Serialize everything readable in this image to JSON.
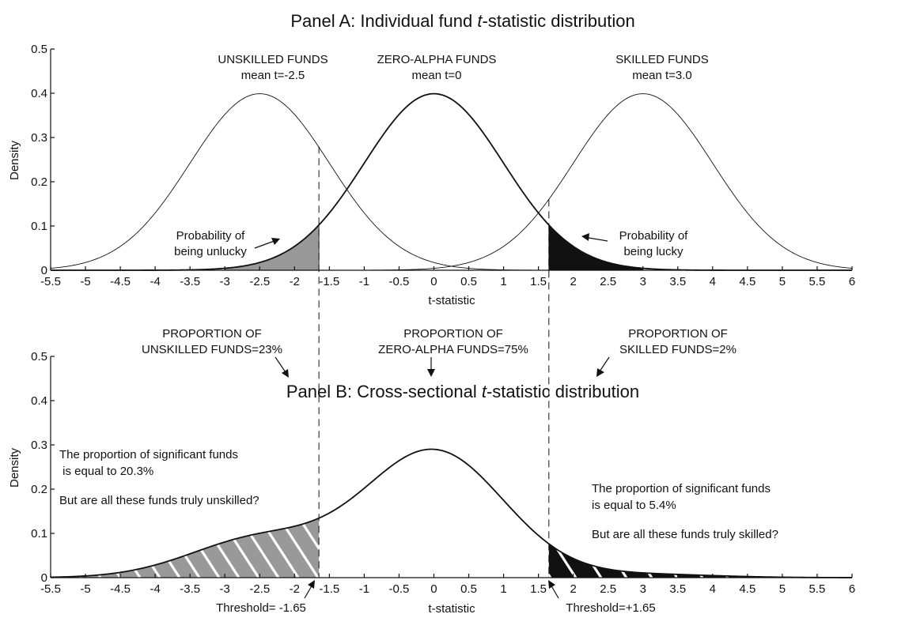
{
  "chart_data": [
    {
      "type": "line",
      "title_prefix": "Panel A: Individual fund ",
      "title_italic": "t",
      "title_suffix": "-statistic distribution",
      "xlabel": "t-statistic",
      "ylabel": "Density",
      "xlim": [
        -5.5,
        6
      ],
      "ylim": [
        0,
        0.5
      ],
      "xticks": [
        -5.5,
        -5,
        -4.5,
        -4,
        -3.5,
        -3,
        -2.5,
        -2,
        -1.5,
        -1,
        -0.5,
        0,
        0.5,
        1,
        1.5,
        2,
        2.5,
        3,
        3.5,
        4,
        4.5,
        5,
        5.5,
        6
      ],
      "xtick_labels": [
        "-5.5",
        "-5",
        "-4.5",
        "-4",
        "-3.5",
        "-3",
        "-2.5",
        "-2",
        "-1.5",
        "-1",
        "-0.5",
        "0",
        "0.5",
        "1",
        "1.5",
        "2",
        "2.5",
        "3",
        "3.5",
        "4",
        "4.5",
        "5",
        "5.5",
        "6"
      ],
      "yticks": [
        0,
        0.1,
        0.2,
        0.3,
        0.4,
        0.5
      ],
      "ytick_labels": [
        "0",
        "0.1",
        "0.2",
        "0.3",
        "0.4",
        "0.5"
      ],
      "series": [
        {
          "mean": -2.5,
          "sd": 1
        },
        {
          "mean": 0,
          "sd": 1
        },
        {
          "mean": 3.0,
          "sd": 1
        }
      ],
      "curve_labels": [
        {
          "line1": "UNSKILLED FUNDS",
          "line2": "mean t=-2.5",
          "x": -2.5
        },
        {
          "line1": "ZERO-ALPHA FUNDS",
          "line2": "mean t=0",
          "x": 0
        },
        {
          "line1": "SKILLED FUNDS",
          "line2": "mean t=3.0",
          "x": 3.0
        }
      ],
      "shaded_regions": [
        {
          "from": -3,
          "to": -1.65,
          "color": "#999999"
        },
        {
          "from": 1.65,
          "to": 3,
          "color": "#111111"
        }
      ],
      "annotations": [
        {
          "line1": "Probability of",
          "line2": "being unlucky"
        },
        {
          "line1": "Probability of",
          "line2": "being lucky"
        }
      ]
    },
    {
      "type": "area",
      "title_prefix": "Panel B: Cross-sectional ",
      "title_italic": "t",
      "title_suffix": "-statistic distribution",
      "xlabel": "t-statistic",
      "ylabel": "Density",
      "xlim": [
        -5.5,
        6
      ],
      "ylim": [
        0,
        0.5
      ],
      "xticks": [
        -5.5,
        -5,
        -4.5,
        -4,
        -3.5,
        -3,
        -2.5,
        -2,
        -1.5,
        -1,
        -0.5,
        0,
        0.5,
        1,
        1.5,
        2,
        2.5,
        3,
        3.5,
        4,
        4.5,
        5,
        5.5,
        6
      ],
      "xtick_labels": [
        "-5.5",
        "-5",
        "-4.5",
        "-4",
        "-3.5",
        "-3",
        "-2.5",
        "-2",
        "-1.5",
        "-1",
        "-0.5",
        "0",
        "0.5",
        "1",
        "1.5",
        "2",
        "2.5",
        "3",
        "3.5",
        "4",
        "4.5",
        "5",
        "5.5",
        "6"
      ],
      "yticks": [
        0,
        0.1,
        0.2,
        0.3,
        0.4,
        0.5
      ],
      "ytick_labels": [
        "0",
        "0.1",
        "0.2",
        "0.3",
        "0.4",
        "0.5"
      ],
      "mixture": {
        "weights": [
          0.23,
          0.75,
          0.02
        ],
        "means": [
          -2.5,
          0,
          3.0
        ],
        "sd": 1,
        "peak": 0.29
      },
      "proportions": [
        {
          "line1": "PROPORTION OF",
          "line2": "UNSKILLED FUNDS=23%"
        },
        {
          "line1": "PROPORTION OF",
          "line2": "ZERO-ALPHA FUNDS=75%"
        },
        {
          "line1": "PROPORTION OF",
          "line2": "SKILLED FUNDS=2%"
        }
      ],
      "thresholds": [
        {
          "x": -1.65,
          "label": "Threshold= -1.65"
        },
        {
          "x": 1.65,
          "label": "Threshold=+1.65"
        }
      ],
      "shaded_regions": [
        {
          "from": -5.5,
          "to": -1.65,
          "color": "#999999"
        },
        {
          "from": 1.65,
          "to": 6,
          "color": "#111111"
        }
      ],
      "annotations": [
        {
          "line1": "The proportion of significant funds",
          "line2": " is equal to 20.3%",
          "line3": "But are all these funds truly unskilled?"
        },
        {
          "line1": "The proportion of significant funds",
          "line2": "is equal to 5.4%",
          "line3": "But are all these funds truly skilled?"
        }
      ]
    }
  ]
}
